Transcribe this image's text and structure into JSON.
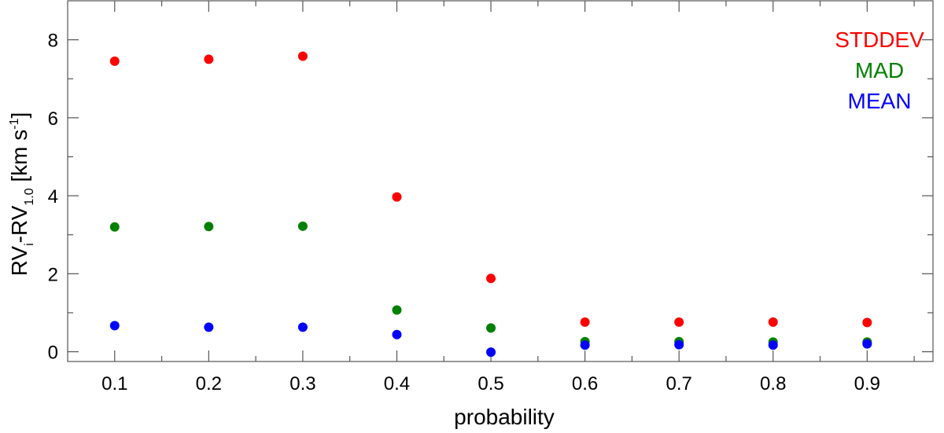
{
  "chart_data": {
    "type": "scatter",
    "xlabel": "probability",
    "ylabel": {
      "parts": [
        "RV",
        "i",
        "-RV",
        "1.0",
        " [km s",
        "-1",
        "]"
      ]
    },
    "xlim": [
      0.05,
      0.97
    ],
    "ylim": [
      -0.25,
      9.0
    ],
    "x_ticks": [
      0.1,
      0.2,
      0.3,
      0.4,
      0.5,
      0.6,
      0.7,
      0.8,
      0.9
    ],
    "x_tick_labels": [
      "0.1",
      "0.2",
      "0.3",
      "0.4",
      "0.5",
      "0.6",
      "0.7",
      "0.8",
      "0.9"
    ],
    "x_minor_ticks": [
      0.15,
      0.25,
      0.35,
      0.45,
      0.55,
      0.65,
      0.75,
      0.85,
      0.95
    ],
    "y_ticks": [
      0,
      2,
      4,
      6,
      8
    ],
    "y_tick_labels": [
      "0",
      "2",
      "4",
      "6",
      "8"
    ],
    "y_minor_ticks": [
      1,
      3,
      5,
      7
    ],
    "grid": false,
    "legend_position": "top-right",
    "series": [
      {
        "name": "STDDEV",
        "color": "#ff0000",
        "x": [
          0.1,
          0.2,
          0.3,
          0.4,
          0.5,
          0.6,
          0.7,
          0.8,
          0.9
        ],
        "y": [
          7.45,
          7.5,
          7.58,
          3.97,
          1.88,
          0.76,
          0.76,
          0.76,
          0.75
        ]
      },
      {
        "name": "MAD",
        "color": "#008000",
        "x": [
          0.1,
          0.2,
          0.3,
          0.4,
          0.5,
          0.6,
          0.7,
          0.8,
          0.9
        ],
        "y": [
          3.2,
          3.21,
          3.22,
          1.07,
          0.61,
          0.26,
          0.26,
          0.25,
          0.25
        ]
      },
      {
        "name": "MEAN",
        "color": "#0000ff",
        "x": [
          0.1,
          0.2,
          0.3,
          0.4,
          0.5,
          0.6,
          0.7,
          0.8,
          0.9
        ],
        "y": [
          0.67,
          0.63,
          0.63,
          0.44,
          -0.01,
          0.17,
          0.18,
          0.17,
          0.2
        ]
      }
    ]
  }
}
